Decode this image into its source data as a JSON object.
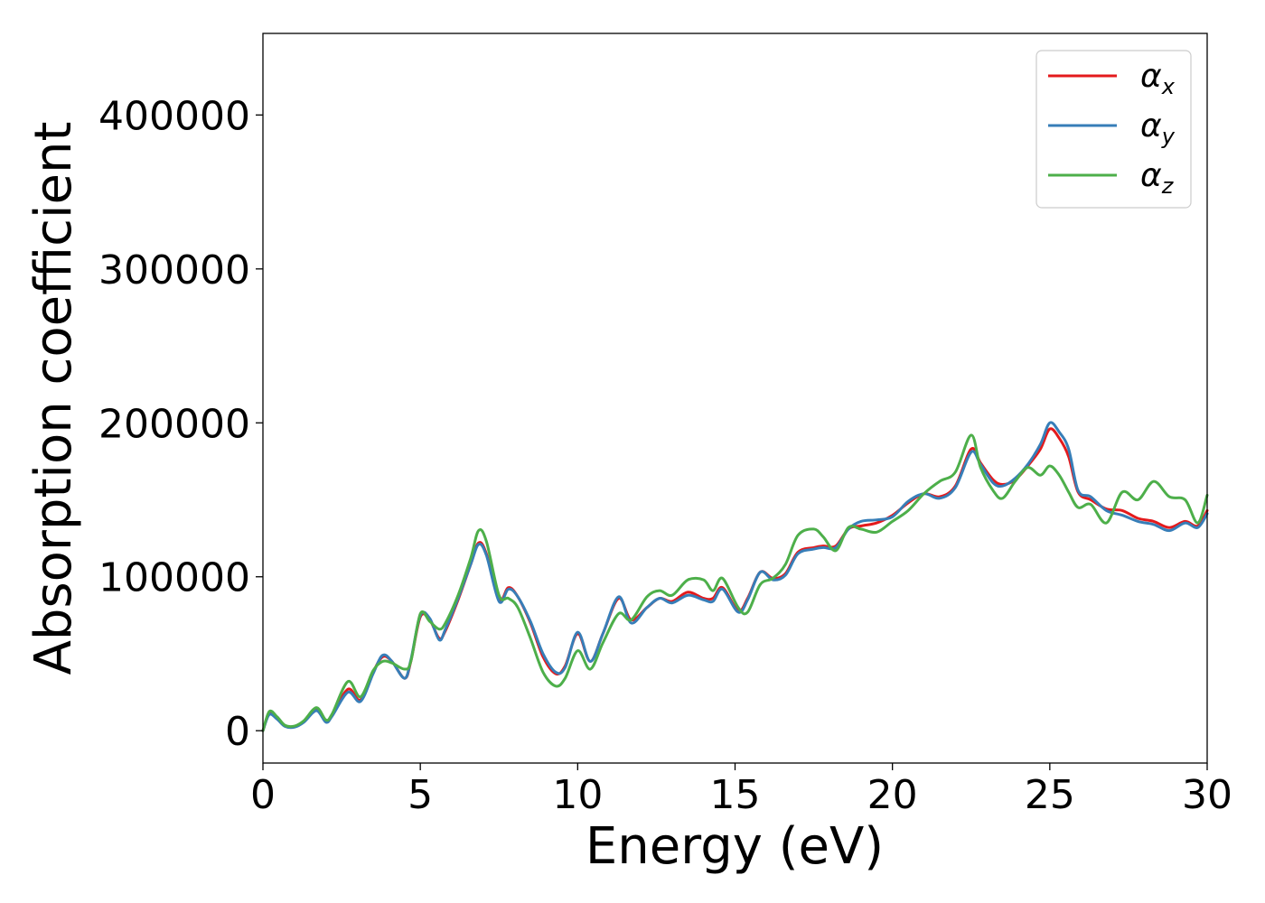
{
  "chart_data": {
    "type": "line",
    "title": "",
    "xlabel": "Energy (eV)",
    "ylabel": "Absorption coefficient",
    "xlim": [
      0,
      30
    ],
    "ylim": [
      -21000,
      453000
    ],
    "xticks": [
      0,
      5,
      10,
      15,
      20,
      25,
      30
    ],
    "xtick_labels": [
      "0",
      "5",
      "10",
      "15",
      "20",
      "25",
      "30"
    ],
    "yticks": [
      0,
      100000,
      200000,
      300000,
      400000
    ],
    "ytick_labels": [
      "0",
      "100000",
      "200000",
      "300000",
      "400000"
    ],
    "grid": false,
    "legend": {
      "position": "top-right",
      "entries": [
        {
          "symbol": "α",
          "subscript": "x",
          "color": "#e41a1c"
        },
        {
          "symbol": "α",
          "subscript": "y",
          "color": "#377eb8"
        },
        {
          "symbol": "α",
          "subscript": "z",
          "color": "#4daf4a"
        }
      ]
    },
    "x": [
      0,
      0.2,
      0.45,
      0.7,
      1.0,
      1.3,
      1.7,
      2.0,
      2.2,
      2.7,
      3.1,
      3.5,
      3.8,
      4.1,
      4.5,
      4.7,
      5.0,
      5.3,
      5.6,
      5.8,
      6.2,
      6.6,
      6.85,
      7.1,
      7.5,
      7.8,
      8.1,
      8.5,
      8.9,
      9.3,
      9.6,
      10.0,
      10.4,
      10.8,
      11.3,
      11.7,
      12.2,
      12.6,
      13.0,
      13.5,
      14.0,
      14.3,
      14.6,
      15.1,
      15.4,
      15.8,
      16.2,
      16.6,
      17.0,
      17.5,
      17.8,
      18.2,
      18.6,
      19.0,
      19.5,
      20.0,
      20.5,
      21.0,
      21.5,
      22.0,
      22.5,
      22.8,
      23.2,
      23.5,
      23.9,
      24.3,
      24.7,
      25.0,
      25.3,
      25.6,
      25.9,
      26.3,
      26.8,
      27.3,
      27.8,
      28.3,
      28.8,
      29.3,
      29.7,
      30.0
    ],
    "series": [
      {
        "name": "α_x",
        "color": "#e41a1c",
        "values": [
          0,
          11000,
          8000,
          3000,
          2500,
          6000,
          14000,
          6000,
          10000,
          27000,
          20000,
          38000,
          48000,
          45000,
          34000,
          45000,
          74000,
          72000,
          60000,
          65000,
          85000,
          108000,
          122000,
          115000,
          85000,
          93000,
          87000,
          70000,
          48000,
          37000,
          42000,
          63000,
          45000,
          63000,
          86000,
          72000,
          80000,
          86000,
          84000,
          90000,
          86000,
          86000,
          93000,
          78000,
          86000,
          103000,
          99000,
          102000,
          116000,
          119000,
          120000,
          120000,
          131000,
          133000,
          135000,
          140000,
          148000,
          154000,
          152000,
          159000,
          183000,
          174000,
          163000,
          160000,
          163000,
          172000,
          183000,
          196000,
          190000,
          178000,
          155000,
          150000,
          144000,
          143000,
          138000,
          136000,
          132000,
          136000,
          133000,
          143000
        ]
      },
      {
        "name": "α_y",
        "color": "#377eb8",
        "values": [
          0,
          10500,
          7500,
          2800,
          2300,
          5500,
          13000,
          5500,
          9500,
          25000,
          19000,
          37000,
          49000,
          45000,
          34000,
          46000,
          75000,
          73000,
          59000,
          66000,
          86000,
          108000,
          121000,
          114000,
          84000,
          92000,
          87000,
          71000,
          50000,
          38000,
          41000,
          64000,
          45000,
          63000,
          87000,
          70000,
          80000,
          86000,
          83000,
          88000,
          85000,
          84000,
          92000,
          77000,
          85000,
          103000,
          98000,
          101000,
          115000,
          118000,
          119000,
          119000,
          131000,
          136000,
          137000,
          139000,
          149000,
          154000,
          151000,
          158000,
          181000,
          173000,
          161000,
          159000,
          164000,
          173000,
          186000,
          200000,
          194000,
          183000,
          156000,
          152000,
          143000,
          140000,
          136000,
          134000,
          130000,
          135000,
          132000,
          141000
        ]
      },
      {
        "name": "α_z",
        "color": "#4daf4a",
        "values": [
          0,
          12500,
          9000,
          3500,
          3000,
          6500,
          15000,
          7000,
          11000,
          32000,
          22000,
          39000,
          45000,
          44000,
          40000,
          45000,
          76000,
          71000,
          66000,
          70000,
          88000,
          112000,
          130000,
          123000,
          88000,
          86000,
          80000,
          60000,
          38000,
          29000,
          34000,
          52000,
          40000,
          57000,
          76000,
          72000,
          87000,
          91000,
          88000,
          98000,
          98000,
          91000,
          99000,
          80000,
          77000,
          95000,
          99000,
          108000,
          127000,
          131000,
          126000,
          117000,
          132000,
          131000,
          129000,
          136000,
          143000,
          154000,
          162000,
          168000,
          192000,
          171000,
          156000,
          151000,
          162000,
          171000,
          166000,
          172000,
          166000,
          155000,
          145000,
          147000,
          135000,
          155000,
          150000,
          162000,
          152000,
          150000,
          135000,
          153000
        ]
      }
    ]
  }
}
